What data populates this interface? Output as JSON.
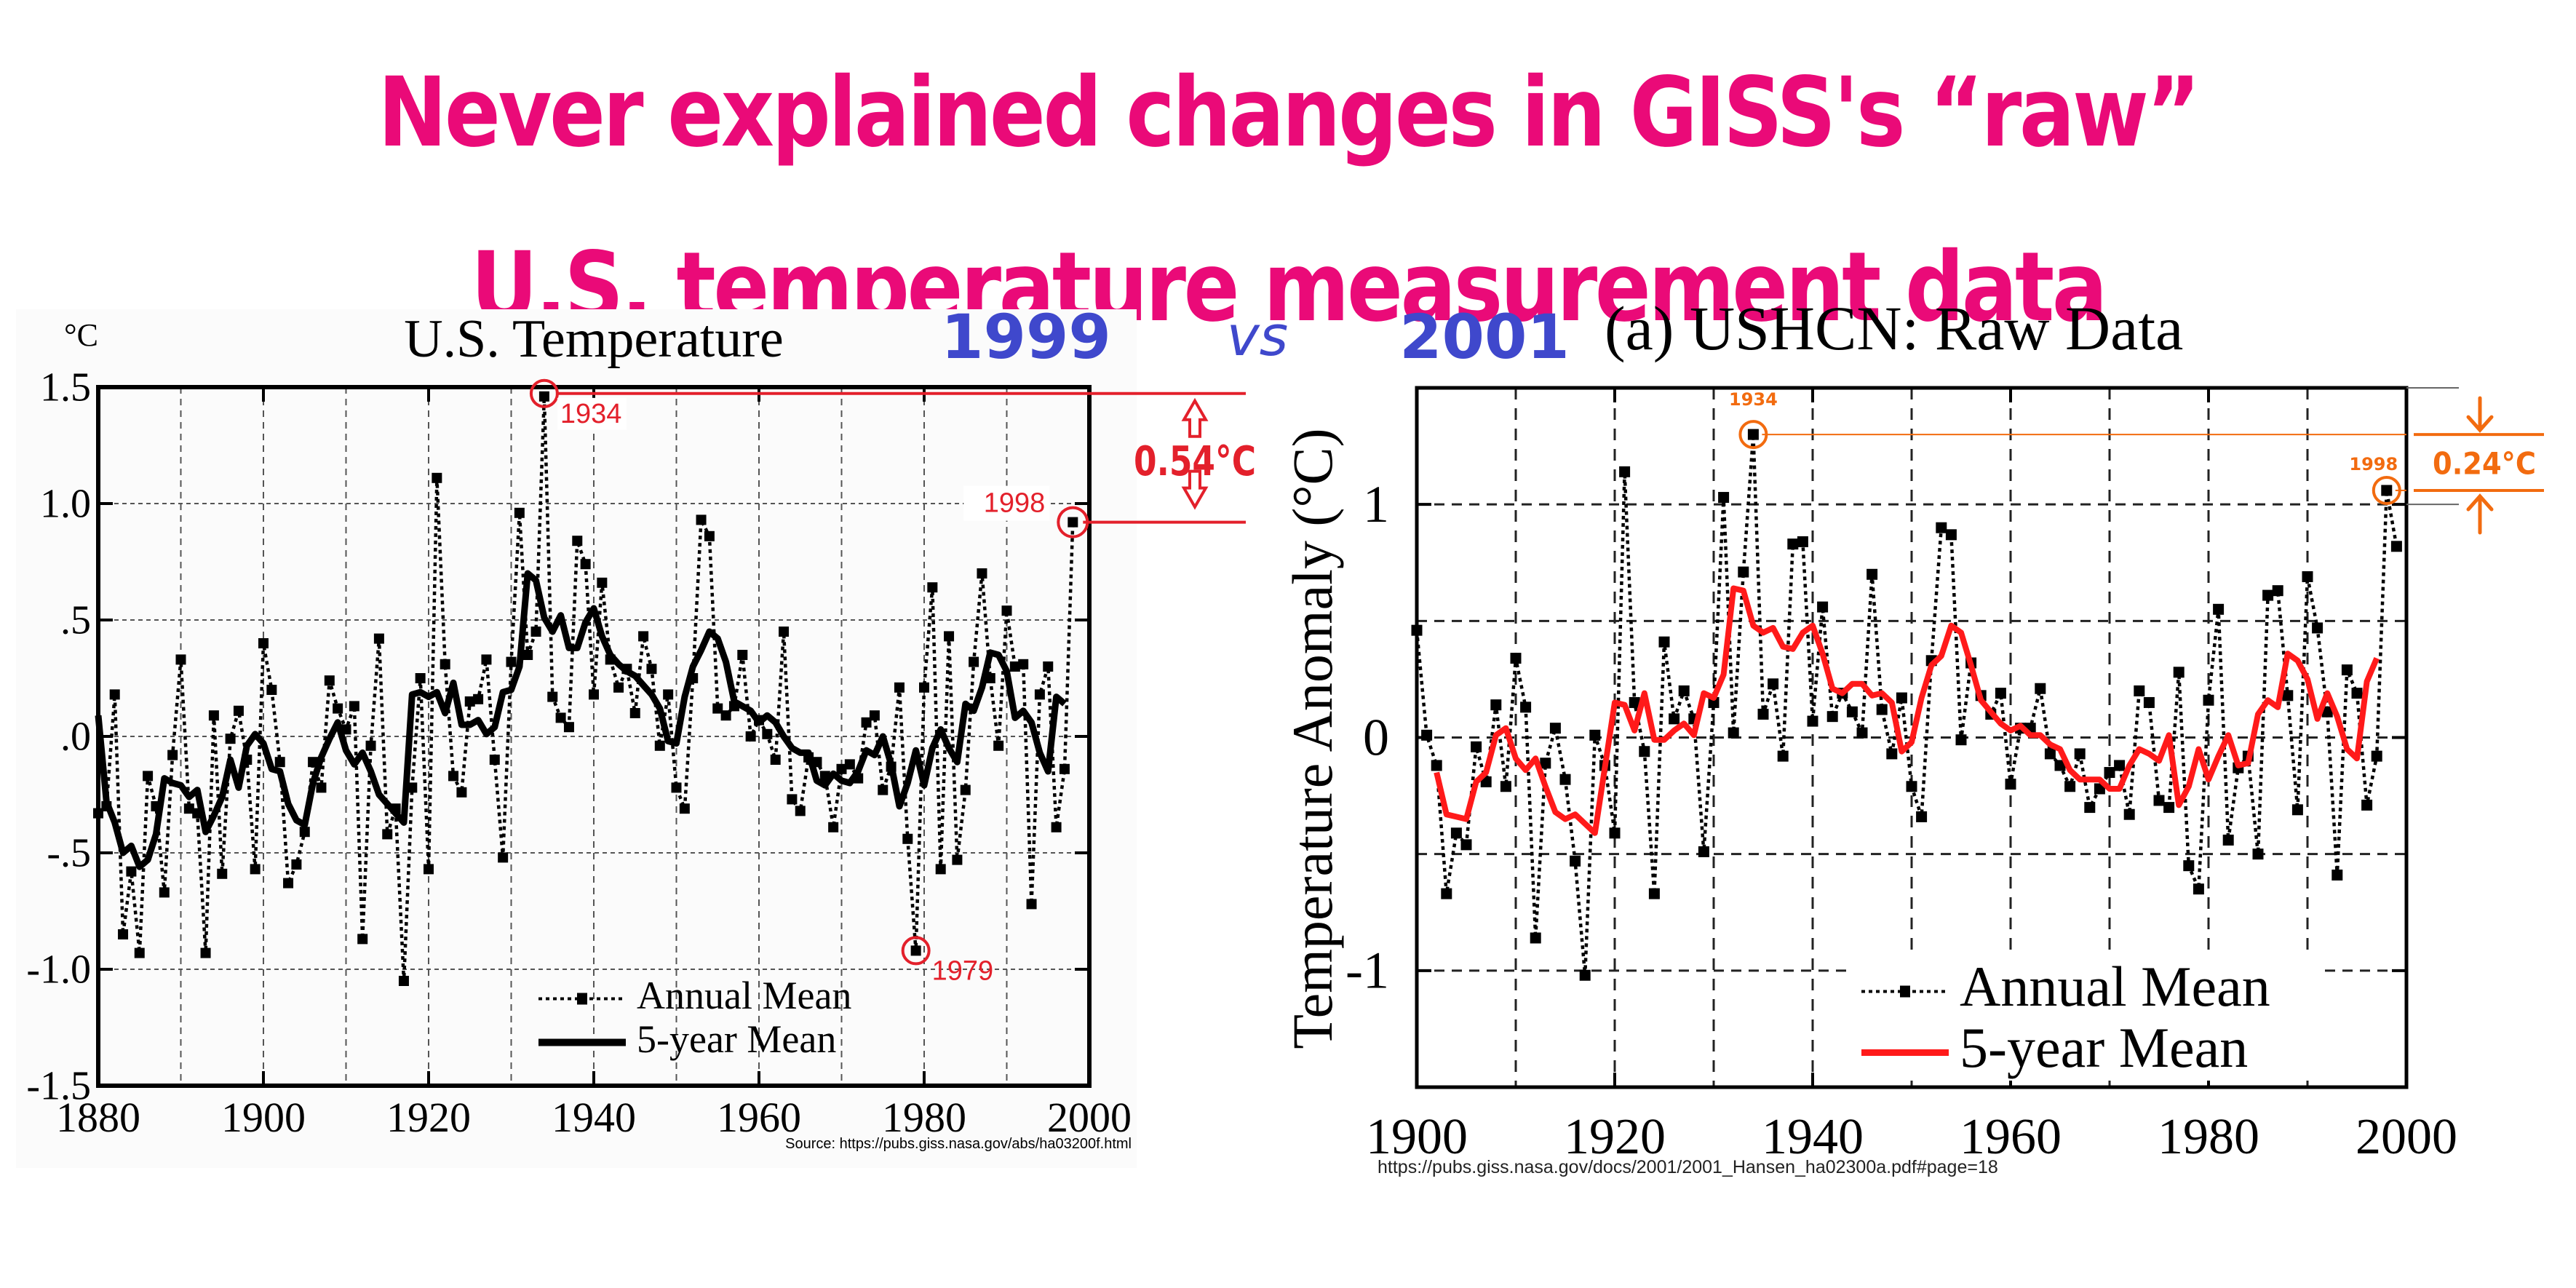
{
  "headline": {
    "line1": "Never explained changes in GISS's “raw”",
    "line2": "U.S. temperature measurement data"
  },
  "comparison": {
    "left_year": "1999",
    "vs": "vs",
    "right_year": "2001"
  },
  "colors": {
    "headline": "#ea0a78",
    "year_labels": "#3f48cc",
    "left_annotation": "#e3202b",
    "right_annotation": "#f26b0f",
    "right_five_year": "#ff1a1a"
  },
  "chart_data": [
    {
      "id": "left",
      "type": "line",
      "title": "U.S. Temperature",
      "unit_label": "°C",
      "xlabel": "",
      "ylabel": "°C",
      "xlim": [
        1880,
        2000
      ],
      "ylim": [
        -1.5,
        1.5
      ],
      "xticks": [
        1880,
        1900,
        1920,
        1940,
        1960,
        1980,
        2000
      ],
      "xtick_labels": [
        "1880",
        "1900",
        "1920",
        "1940",
        "1960",
        "1980",
        "2000"
      ],
      "yticks": [
        1.5,
        1.0,
        0.5,
        0.0,
        -0.5,
        -1.0,
        -1.5
      ],
      "ytick_labels": [
        "1.5",
        "1.0",
        ".5",
        ".0",
        "-.5",
        "-1.0",
        "-1.5"
      ],
      "grid": true,
      "legend": {
        "placement": "bottom-center",
        "entries": [
          "Annual Mean",
          "5-year Mean"
        ]
      },
      "source": "Source: https://pubs.giss.nasa.gov/abs/ha03200f.html",
      "series": [
        {
          "name": "Annual Mean",
          "style": "dotted-markers",
          "x_start": 1880,
          "values": [
            -0.33,
            -0.3,
            0.18,
            -0.85,
            -0.58,
            -0.93,
            -0.17,
            -0.3,
            -0.67,
            -0.08,
            0.33,
            -0.31,
            -0.33,
            -0.93,
            0.09,
            -0.59,
            -0.01,
            0.11,
            -0.1,
            -0.57,
            0.4,
            0.2,
            -0.11,
            -0.63,
            -0.55,
            -0.41,
            -0.11,
            -0.22,
            0.24,
            0.12,
            0.03,
            0.13,
            -0.87,
            -0.04,
            0.42,
            -0.42,
            -0.31,
            -1.05,
            -0.22,
            0.25,
            -0.57,
            1.11,
            0.31,
            -0.17,
            -0.24,
            0.15,
            0.16,
            0.33,
            -0.1,
            -0.52,
            0.32,
            0.96,
            0.35,
            0.45,
            1.46,
            0.17,
            0.08,
            0.04,
            0.84,
            0.74,
            0.18,
            0.66,
            0.33,
            0.21,
            0.29,
            0.1,
            0.43,
            0.29,
            -0.04,
            0.18,
            -0.22,
            -0.31,
            0.25,
            0.93,
            0.86,
            0.12,
            0.09,
            0.13,
            0.35,
            0.0,
            0.07,
            0.01,
            -0.1,
            0.45,
            -0.27,
            -0.32,
            -0.09,
            -0.11,
            -0.17,
            -0.39,
            -0.14,
            -0.12,
            -0.18,
            0.06,
            0.09,
            -0.23,
            -0.13,
            0.21,
            -0.44,
            -0.92,
            0.21,
            0.64,
            -0.57,
            0.43,
            -0.53,
            -0.23,
            0.32,
            0.7,
            0.25,
            -0.04,
            0.54,
            0.3,
            0.31,
            -0.72,
            0.18,
            0.3,
            -0.39,
            -0.14,
            0.92
          ]
        },
        {
          "name": "5-year Mean",
          "style": "solid",
          "x_start": 1880,
          "values": [
            0.09,
            -0.28,
            -0.37,
            -0.5,
            -0.47,
            -0.56,
            -0.53,
            -0.42,
            -0.18,
            -0.2,
            -0.21,
            -0.26,
            -0.23,
            -0.41,
            -0.34,
            -0.26,
            -0.1,
            -0.22,
            -0.04,
            0.01,
            -0.03,
            -0.14,
            -0.15,
            -0.29,
            -0.36,
            -0.38,
            -0.2,
            -0.09,
            -0.01,
            0.06,
            -0.06,
            -0.12,
            -0.07,
            -0.15,
            -0.25,
            -0.29,
            -0.33,
            -0.37,
            0.18,
            0.19,
            0.17,
            0.19,
            0.1,
            0.23,
            0.05,
            0.05,
            0.07,
            0.01,
            0.04,
            0.19,
            0.2,
            0.3,
            0.7,
            0.67,
            0.51,
            0.45,
            0.52,
            0.38,
            0.38,
            0.49,
            0.55,
            0.43,
            0.35,
            0.31,
            0.28,
            0.26,
            0.22,
            0.18,
            0.12,
            -0.02,
            -0.03,
            0.17,
            0.3,
            0.37,
            0.45,
            0.42,
            0.32,
            0.15,
            0.13,
            0.11,
            0.06,
            0.09,
            0.06,
            0.0,
            -0.05,
            -0.07,
            -0.07,
            -0.19,
            -0.21,
            -0.16,
            -0.19,
            -0.2,
            -0.15,
            -0.06,
            -0.08,
            0.0,
            -0.12,
            -0.3,
            -0.2,
            -0.06,
            -0.21,
            -0.05,
            0.03,
            -0.05,
            -0.11,
            0.14,
            0.11,
            0.21,
            0.36,
            0.35,
            0.28,
            0.08,
            0.11,
            0.06,
            -0.07,
            -0.15,
            0.17,
            0.14
          ]
        }
      ],
      "annotations": {
        "highlights": [
          {
            "year": "1934",
            "value": 1.46
          },
          {
            "year": "1998",
            "value": 0.92
          },
          {
            "year": "1979",
            "value": -0.92
          }
        ],
        "difference_label": "0.54°C"
      }
    },
    {
      "id": "right",
      "type": "line",
      "title": "(a)  USHCN: Raw Data",
      "xlabel": "",
      "ylabel": "Temperature Anomaly (°C)",
      "xlim": [
        1900,
        2000
      ],
      "ylim": [
        -1.5,
        1.5
      ],
      "xticks": [
        1900,
        1920,
        1940,
        1960,
        1980,
        2000
      ],
      "xtick_labels": [
        "1900",
        "1920",
        "1940",
        "1960",
        "1980",
        "2000"
      ],
      "yticks": [
        1,
        0,
        -1
      ],
      "ytick_labels": [
        "1",
        "0",
        "-1"
      ],
      "grid": true,
      "legend": {
        "placement": "bottom-right",
        "entries": [
          "Annual Mean",
          "5-year Mean"
        ]
      },
      "source": "https://pubs.giss.nasa.gov/docs/2001/2001_Hansen_ha02300a.pdf#page=18",
      "series": [
        {
          "name": "Annual Mean",
          "style": "dotted-markers",
          "x_start": 1900,
          "values": [
            0.46,
            0.01,
            -0.12,
            -0.67,
            -0.41,
            -0.46,
            -0.04,
            -0.19,
            0.14,
            -0.21,
            0.34,
            0.13,
            -0.86,
            -0.11,
            0.04,
            -0.18,
            -0.53,
            -1.02,
            0.01,
            -0.12,
            -0.41,
            1.14,
            0.15,
            -0.06,
            -0.67,
            0.41,
            0.08,
            0.2,
            0.08,
            -0.49,
            0.15,
            1.03,
            0.02,
            0.71,
            1.3,
            0.1,
            0.23,
            -0.08,
            0.83,
            0.84,
            0.07,
            0.56,
            0.09,
            0.19,
            0.11,
            0.02,
            0.7,
            0.12,
            -0.07,
            0.17,
            -0.21,
            -0.34,
            0.33,
            0.9,
            0.87,
            -0.01,
            0.32,
            0.18,
            0.1,
            0.19,
            -0.2,
            0.04,
            0.04,
            0.21,
            -0.07,
            -0.12,
            -0.21,
            -0.07,
            -0.3,
            -0.22,
            -0.15,
            -0.12,
            -0.33,
            0.2,
            0.15,
            -0.27,
            -0.3,
            0.28,
            -0.55,
            -0.65,
            0.16,
            0.55,
            -0.44,
            -0.13,
            -0.08,
            -0.5,
            0.61,
            0.63,
            0.18,
            -0.31,
            0.69,
            0.47,
            0.11,
            -0.59,
            0.29,
            0.19,
            -0.29,
            -0.08,
            1.06,
            0.82
          ]
        },
        {
          "name": "5-year Mean",
          "style": "solid-red",
          "x_start": 1902,
          "values": [
            -0.15,
            -0.33,
            -0.34,
            -0.35,
            -0.19,
            -0.15,
            0.01,
            0.04,
            -0.09,
            -0.14,
            -0.09,
            -0.21,
            -0.32,
            -0.35,
            -0.33,
            -0.37,
            -0.41,
            -0.13,
            0.15,
            0.14,
            0.03,
            0.19,
            -0.01,
            -0.01,
            0.03,
            0.06,
            0.01,
            0.19,
            0.17,
            0.27,
            0.64,
            0.63,
            0.48,
            0.45,
            0.47,
            0.39,
            0.38,
            0.45,
            0.48,
            0.36,
            0.21,
            0.19,
            0.23,
            0.23,
            0.18,
            0.19,
            0.15,
            -0.06,
            -0.02,
            0.17,
            0.31,
            0.35,
            0.48,
            0.45,
            0.31,
            0.16,
            0.11,
            0.06,
            0.03,
            0.05,
            0.01,
            0.01,
            -0.03,
            -0.05,
            -0.14,
            -0.18,
            -0.18,
            -0.18,
            -0.22,
            -0.22,
            -0.12,
            -0.05,
            -0.07,
            -0.1,
            0.01,
            -0.29,
            -0.21,
            -0.05,
            -0.18,
            -0.08,
            0.01,
            -0.12,
            -0.11,
            0.1,
            0.16,
            0.13,
            0.36,
            0.33,
            0.25,
            0.08,
            0.19,
            0.09,
            -0.05,
            -0.09,
            0.24,
            0.34
          ]
        }
      ],
      "annotations": {
        "highlights": [
          {
            "year": "1934",
            "value": 1.3
          },
          {
            "year": "1998",
            "value": 1.06
          }
        ],
        "difference_label": "0.24°C"
      }
    }
  ]
}
